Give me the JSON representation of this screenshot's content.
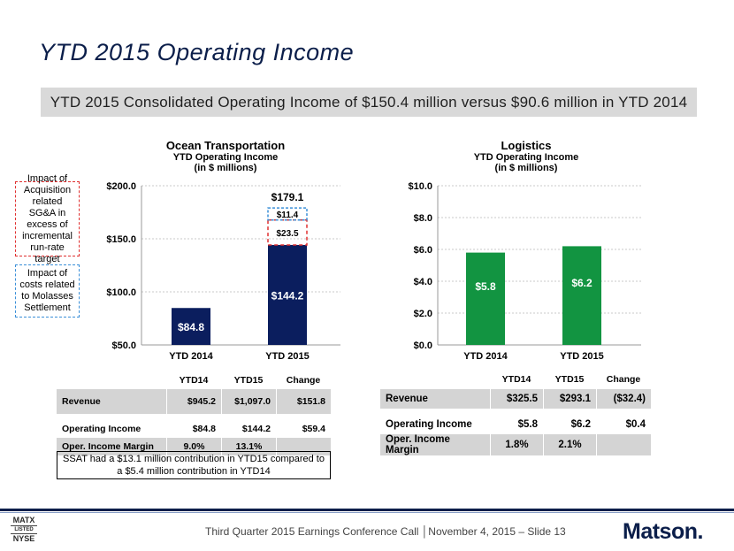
{
  "slide": {
    "title": "YTD 2015 Operating Income",
    "headline": "YTD 2015 Consolidated Operating Income of $150.4 million versus $90.6 million in YTD 2014"
  },
  "ocean": {
    "heading": "Ocean Transportation",
    "subheading": "YTD Operating Income",
    "units": "(in $ millions)",
    "y_ticks": [
      "$200.0",
      "$150.0",
      "$100.0",
      "$50.0"
    ],
    "categories": [
      "YTD 2014",
      "YTD 2015"
    ],
    "bar_labels": [
      "$84.8",
      "$144.2"
    ],
    "total_label": "$179.1",
    "seg_blue_label": "$11.4",
    "seg_red_label": "$23.5",
    "legend_red": "Impact of Acquisition related SG&A in excess of incremental run-rate target",
    "legend_blue": "Impact of costs related to Molasses Settlement",
    "table": {
      "headers": [
        "",
        "YTD14",
        "YTD15",
        "Change"
      ],
      "rows": [
        [
          "Revenue",
          "$945.2",
          "$1,097.0",
          "$151.8"
        ],
        [
          "Operating Income",
          "$84.8",
          "$144.2",
          "$59.4"
        ],
        [
          "Oper. Income Margin",
          "9.0%",
          "13.1%",
          ""
        ]
      ]
    },
    "note": "SSAT had a $13.1 million contribution in YTD15 compared to a $5.4 million contribution in YTD14"
  },
  "logistics": {
    "heading": "Logistics",
    "subheading": "YTD Operating Income",
    "units": "(in $ millions)",
    "y_ticks": [
      "$10.0",
      "$8.0",
      "$6.0",
      "$4.0",
      "$2.0",
      "$0.0"
    ],
    "categories": [
      "YTD 2014",
      "YTD 2015"
    ],
    "bar_labels": [
      "$5.8",
      "$6.2"
    ],
    "table": {
      "headers": [
        "",
        "YTD14",
        "YTD15",
        "Change"
      ],
      "rows": [
        [
          "Revenue",
          "$325.5",
          "$293.1",
          "($32.4)"
        ],
        [
          "Operating Income",
          "$5.8",
          "$6.2",
          "$0.4"
        ],
        [
          "Oper. Income Margin",
          "1.8%",
          "2.1%",
          ""
        ]
      ]
    }
  },
  "chart_data": [
    {
      "type": "bar",
      "title": "Ocean Transportation",
      "ylabel": "",
      "categories": [
        "YTD 2014",
        "YTD 2015"
      ],
      "values": [
        84.8,
        144.2
      ],
      "stacked_adjustments": [
        {
          "name": "Impact of Acquisition related SG&A in excess of incremental run-rate target",
          "category": "YTD 2015",
          "value": 23.5
        },
        {
          "name": "Impact of costs related to Molasses Settlement",
          "category": "YTD 2015",
          "value": 11.4
        }
      ],
      "adjusted_total": 179.1,
      "ylim": [
        50,
        200
      ],
      "grid": true
    },
    {
      "type": "bar",
      "title": "Logistics",
      "ylabel": "",
      "categories": [
        "YTD 2014",
        "YTD 2015"
      ],
      "values": [
        5.8,
        6.2
      ],
      "ylim": [
        0,
        10
      ],
      "grid": true
    }
  ],
  "footer": {
    "stamp_top": "MATX",
    "stamp_mid": "LISTED",
    "stamp_bottom": "NYSE",
    "text": "Third Quarter 2015 Earnings Conference Call │November 4, 2015 – Slide 13",
    "logo": "Matson."
  },
  "colors": {
    "navy": "#0b1e4a",
    "ocean_bar": "#0b1e5e",
    "logistics_bar": "#129441",
    "red_dash": "#e03030",
    "blue_dash": "#3a8fd8",
    "table_gray": "#d4d4d4",
    "headline_gray": "#d9d9d9"
  }
}
